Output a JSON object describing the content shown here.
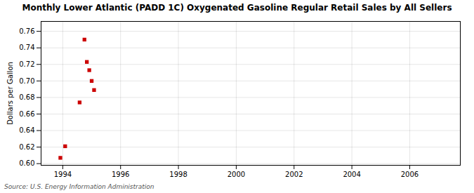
{
  "chart_data": {
    "type": "scatter",
    "title": "Monthly Lower Atlantic (PADD 1C) Oxygenated Gasoline Regular Retail Sales by All Sellers",
    "ylabel": "Dollars per Gallon",
    "source": "Source: U.S. Energy Information Administration",
    "x": [
      1993.917,
      1994.083,
      1994.583,
      1994.75,
      1994.833,
      1994.917,
      1995.0,
      1995.083
    ],
    "values": [
      0.607,
      0.621,
      0.674,
      0.75,
      0.723,
      0.713,
      0.7,
      0.689
    ],
    "color": "#cc0000",
    "marker": "square",
    "xlim": [
      1993.25,
      2007.75
    ],
    "ylim": [
      0.598,
      0.772
    ],
    "xticks": [
      1994,
      1996,
      1998,
      2000,
      2002,
      2004,
      2006
    ],
    "yticks": [
      {
        "value": 0.6,
        "label": "0.60"
      },
      0.62,
      0.64,
      0.66,
      0.68,
      {
        "value": 0.7,
        "label": "0.70"
      },
      0.72,
      0.74,
      0.76
    ],
    "grid": true
  }
}
